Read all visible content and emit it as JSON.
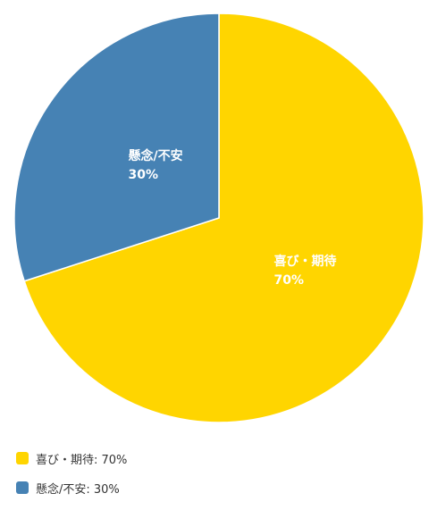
{
  "chart_data": {
    "type": "pie",
    "categories": [
      "喜び・期待",
      "懸念/不安"
    ],
    "values": [
      70,
      30
    ],
    "colors": [
      "#FFD500",
      "#4682B4"
    ],
    "slice_labels": [
      {
        "name": "喜び・期待",
        "value_text": "70%"
      },
      {
        "name": "懸念/不安",
        "value_text": "30%"
      }
    ],
    "legend": {
      "placement": "bottom-left",
      "items": [
        {
          "label": "喜び・期待: 70%",
          "color": "#FFD500"
        },
        {
          "label": "懸念/不安: 30%",
          "color": "#4682B4"
        }
      ]
    },
    "start_angle": "top",
    "direction": "clockwise"
  }
}
